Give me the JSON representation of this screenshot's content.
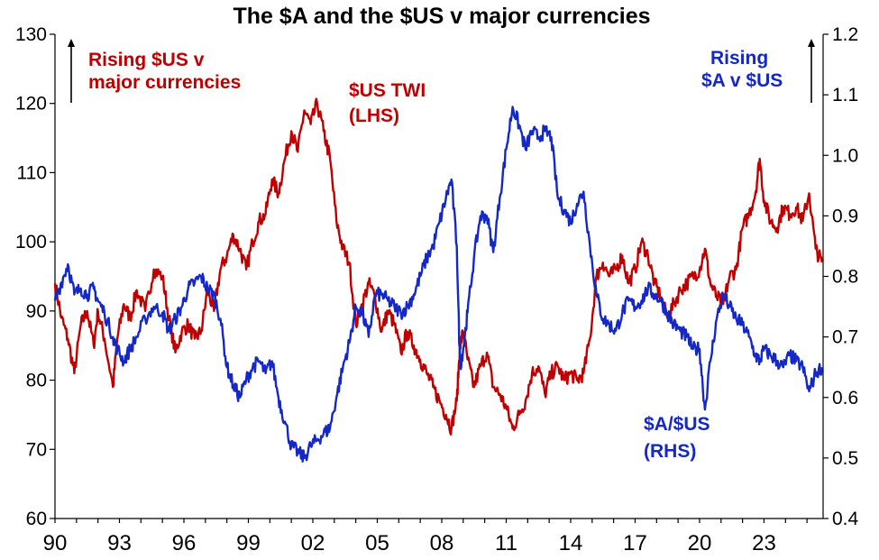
{
  "chart_data": {
    "type": "line",
    "title": "The $A and the $US v major currencies",
    "x_tick_labels": [
      "90",
      "93",
      "96",
      "99",
      "02",
      "05",
      "08",
      "11",
      "14",
      "17",
      "20",
      "23"
    ],
    "x_range": [
      1990,
      2025.75
    ],
    "y_left": {
      "ticks": [
        60,
        70,
        80,
        90,
        100,
        110,
        120,
        130
      ],
      "range": [
        60,
        130
      ]
    },
    "y_right": {
      "ticks": [
        "0.4",
        "0.5",
        "0.6",
        "0.7",
        "0.8",
        "0.9",
        "1.0",
        "1.1",
        "1.2"
      ],
      "range": [
        0.4,
        1.2
      ]
    },
    "annotations": {
      "rising_usd_line1": "Rising $US v",
      "rising_usd_line2": "major currencies",
      "usd_twi_line1": "$US TWI",
      "usd_twi_line2": "(LHS)",
      "rising_aud_line1": "Rising",
      "rising_aud_line2": "$A v $US",
      "aud_usd_line1": "$A/$US",
      "aud_usd_line2": "(RHS)"
    },
    "grid": false,
    "series": [
      {
        "name": "$US TWI",
        "axis": "left",
        "color": "#c00000",
        "x": [
          1990.0,
          1990.3,
          1990.6,
          1990.9,
          1991.2,
          1991.5,
          1991.8,
          1992.0,
          1992.3,
          1992.7,
          1992.9,
          1993.2,
          1993.5,
          1993.8,
          1994.2,
          1994.6,
          1995.0,
          1995.3,
          1995.6,
          1995.9,
          1996.2,
          1996.5,
          1996.8,
          1997.1,
          1997.4,
          1997.7,
          1998.0,
          1998.3,
          1998.6,
          1998.9,
          1999.2,
          1999.5,
          1999.8,
          2000.1,
          2000.4,
          2000.7,
          2001.0,
          2001.3,
          2001.6,
          2001.9,
          2002.2,
          2002.5,
          2002.8,
          2003.1,
          2003.4,
          2003.7,
          2004.0,
          2004.3,
          2004.6,
          2004.9,
          2005.2,
          2005.5,
          2005.8,
          2006.1,
          2006.4,
          2006.7,
          2007.0,
          2007.3,
          2007.6,
          2007.9,
          2008.2,
          2008.45,
          2008.7,
          2008.85,
          2009.0,
          2009.2,
          2009.5,
          2009.8,
          2010.1,
          2010.4,
          2010.7,
          2011.0,
          2011.3,
          2011.6,
          2011.9,
          2012.2,
          2012.5,
          2012.8,
          2013.1,
          2013.4,
          2013.7,
          2014.0,
          2014.3,
          2014.6,
          2014.9,
          2015.2,
          2015.5,
          2015.8,
          2016.1,
          2016.4,
          2016.7,
          2017.0,
          2017.3,
          2017.6,
          2017.9,
          2018.2,
          2018.5,
          2018.8,
          2019.1,
          2019.4,
          2019.7,
          2020.0,
          2020.25,
          2020.5,
          2020.8,
          2021.1,
          2021.4,
          2021.7,
          2022.0,
          2022.3,
          2022.6,
          2022.8,
          2023.0,
          2023.3,
          2023.6,
          2023.9,
          2024.2,
          2024.5,
          2024.8,
          2025.1,
          2025.4,
          2025.7
        ],
        "values": [
          94,
          89,
          86,
          81,
          88,
          90,
          85,
          90,
          86,
          79,
          86,
          91,
          89,
          93,
          90,
          96,
          95,
          89,
          84,
          87,
          88,
          86,
          87,
          93,
          90,
          96,
          98,
          101,
          99,
          96,
          100,
          103,
          104,
          109,
          107,
          112,
          116,
          113,
          119,
          117,
          120,
          116,
          112,
          103,
          99,
          97,
          88,
          91,
          94,
          92,
          87,
          90,
          88,
          84,
          87,
          85,
          83,
          81,
          79,
          77,
          75,
          73,
          77,
          85,
          87,
          83,
          79,
          82,
          84,
          79,
          78,
          76,
          73,
          75,
          77,
          81,
          82,
          78,
          81,
          82,
          80,
          81,
          80,
          81,
          86,
          95,
          97,
          95,
          96,
          98,
          94,
          96,
          100,
          98,
          94,
          92,
          89,
          91,
          93,
          94,
          95,
          96,
          99,
          94,
          92,
          91,
          95,
          96,
          102,
          104,
          107,
          112,
          106,
          103,
          102,
          105,
          104,
          105,
          103,
          107,
          99,
          97
        ]
      },
      {
        "name": "$A/$US",
        "axis": "right",
        "color": "#1428c8",
        "x": [
          1990.0,
          1990.3,
          1990.6,
          1990.9,
          1991.2,
          1991.5,
          1991.8,
          1992.0,
          1992.3,
          1992.7,
          1992.9,
          1993.2,
          1993.5,
          1993.8,
          1994.2,
          1994.6,
          1995.0,
          1995.3,
          1995.6,
          1995.9,
          1996.2,
          1996.5,
          1996.8,
          1997.1,
          1997.4,
          1997.7,
          1998.0,
          1998.3,
          1998.6,
          1998.9,
          1999.2,
          1999.5,
          1999.8,
          2000.1,
          2000.4,
          2000.7,
          2001.0,
          2001.3,
          2001.6,
          2001.9,
          2002.2,
          2002.5,
          2002.8,
          2003.1,
          2003.4,
          2003.7,
          2004.0,
          2004.3,
          2004.6,
          2004.9,
          2005.2,
          2005.5,
          2005.8,
          2006.1,
          2006.4,
          2006.7,
          2007.0,
          2007.3,
          2007.6,
          2007.9,
          2008.2,
          2008.45,
          2008.7,
          2008.85,
          2009.0,
          2009.2,
          2009.5,
          2009.8,
          2010.1,
          2010.4,
          2010.7,
          2011.0,
          2011.3,
          2011.6,
          2011.9,
          2012.2,
          2012.5,
          2012.8,
          2013.1,
          2013.4,
          2013.7,
          2014.0,
          2014.3,
          2014.6,
          2014.9,
          2015.2,
          2015.5,
          2015.8,
          2016.1,
          2016.4,
          2016.7,
          2017.0,
          2017.3,
          2017.6,
          2017.9,
          2018.2,
          2018.5,
          2018.8,
          2019.1,
          2019.4,
          2019.7,
          2020.0,
          2020.25,
          2020.5,
          2020.8,
          2021.1,
          2021.4,
          2021.7,
          2022.0,
          2022.3,
          2022.6,
          2022.8,
          2023.0,
          2023.3,
          2023.6,
          2023.9,
          2024.2,
          2024.5,
          2024.8,
          2025.1,
          2025.4,
          2025.7
        ],
        "values": [
          0.76,
          0.79,
          0.82,
          0.77,
          0.78,
          0.77,
          0.78,
          0.76,
          0.74,
          0.7,
          0.68,
          0.66,
          0.68,
          0.7,
          0.73,
          0.75,
          0.74,
          0.71,
          0.73,
          0.75,
          0.78,
          0.79,
          0.8,
          0.78,
          0.77,
          0.73,
          0.65,
          0.62,
          0.6,
          0.63,
          0.65,
          0.66,
          0.64,
          0.66,
          0.6,
          0.56,
          0.52,
          0.51,
          0.5,
          0.52,
          0.53,
          0.54,
          0.55,
          0.6,
          0.65,
          0.69,
          0.75,
          0.74,
          0.7,
          0.77,
          0.77,
          0.76,
          0.75,
          0.74,
          0.75,
          0.77,
          0.8,
          0.83,
          0.85,
          0.89,
          0.93,
          0.96,
          0.85,
          0.65,
          0.68,
          0.74,
          0.83,
          0.9,
          0.9,
          0.84,
          0.93,
          1.01,
          1.08,
          1.05,
          1.01,
          1.04,
          1.03,
          1.04,
          1.03,
          0.93,
          0.91,
          0.89,
          0.92,
          0.94,
          0.85,
          0.77,
          0.73,
          0.72,
          0.71,
          0.74,
          0.76,
          0.75,
          0.76,
          0.78,
          0.77,
          0.76,
          0.74,
          0.72,
          0.71,
          0.7,
          0.68,
          0.68,
          0.58,
          0.66,
          0.73,
          0.77,
          0.75,
          0.73,
          0.72,
          0.7,
          0.67,
          0.66,
          0.68,
          0.67,
          0.66,
          0.65,
          0.67,
          0.66,
          0.65,
          0.61,
          0.64,
          0.65
        ]
      }
    ]
  }
}
